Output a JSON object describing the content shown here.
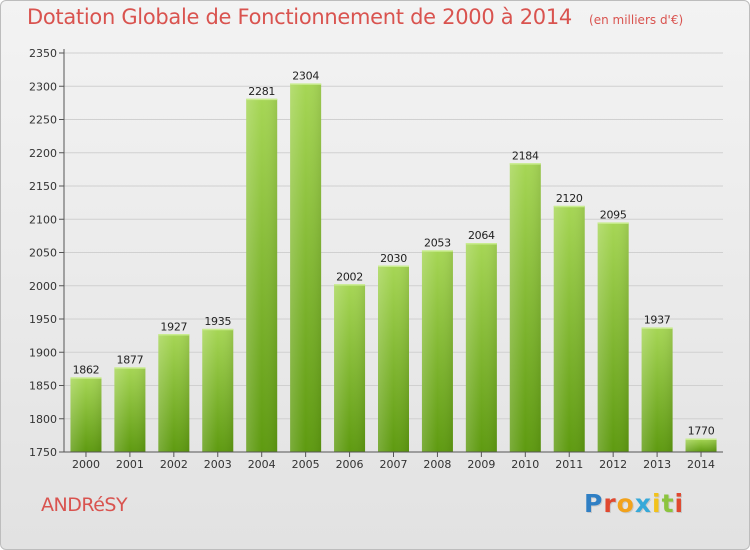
{
  "header": {
    "title": "Dotation Globale de Fonctionnement de 2000 à 2014",
    "subtitle": "(en milliers d'€)"
  },
  "footer": {
    "location": "ANDRéSY",
    "brand": "Proxiti"
  },
  "colors": {
    "title": "#d9534f",
    "bar_top": "#a6d655",
    "bar_bottom": "#5e9a10",
    "grid": "#d0d0d0"
  },
  "chart_data": {
    "type": "bar",
    "title": "Dotation Globale de Fonctionnement de 2000 à 2014",
    "subtitle": "(en milliers d'€)",
    "categories": [
      "2000",
      "2001",
      "2002",
      "2003",
      "2004",
      "2005",
      "2006",
      "2007",
      "2008",
      "2009",
      "2010",
      "2011",
      "2012",
      "2013",
      "2014"
    ],
    "values": [
      1862,
      1877,
      1927,
      1935,
      2281,
      2304,
      2002,
      2030,
      2053,
      2064,
      2184,
      2120,
      2095,
      1937,
      1770
    ],
    "ylim": [
      1750,
      2350
    ],
    "yticks": [
      1750,
      1800,
      1850,
      1900,
      1950,
      2000,
      2050,
      2100,
      2150,
      2200,
      2250,
      2300,
      2350
    ],
    "grid": true,
    "legend": "none",
    "data_labels": true
  }
}
